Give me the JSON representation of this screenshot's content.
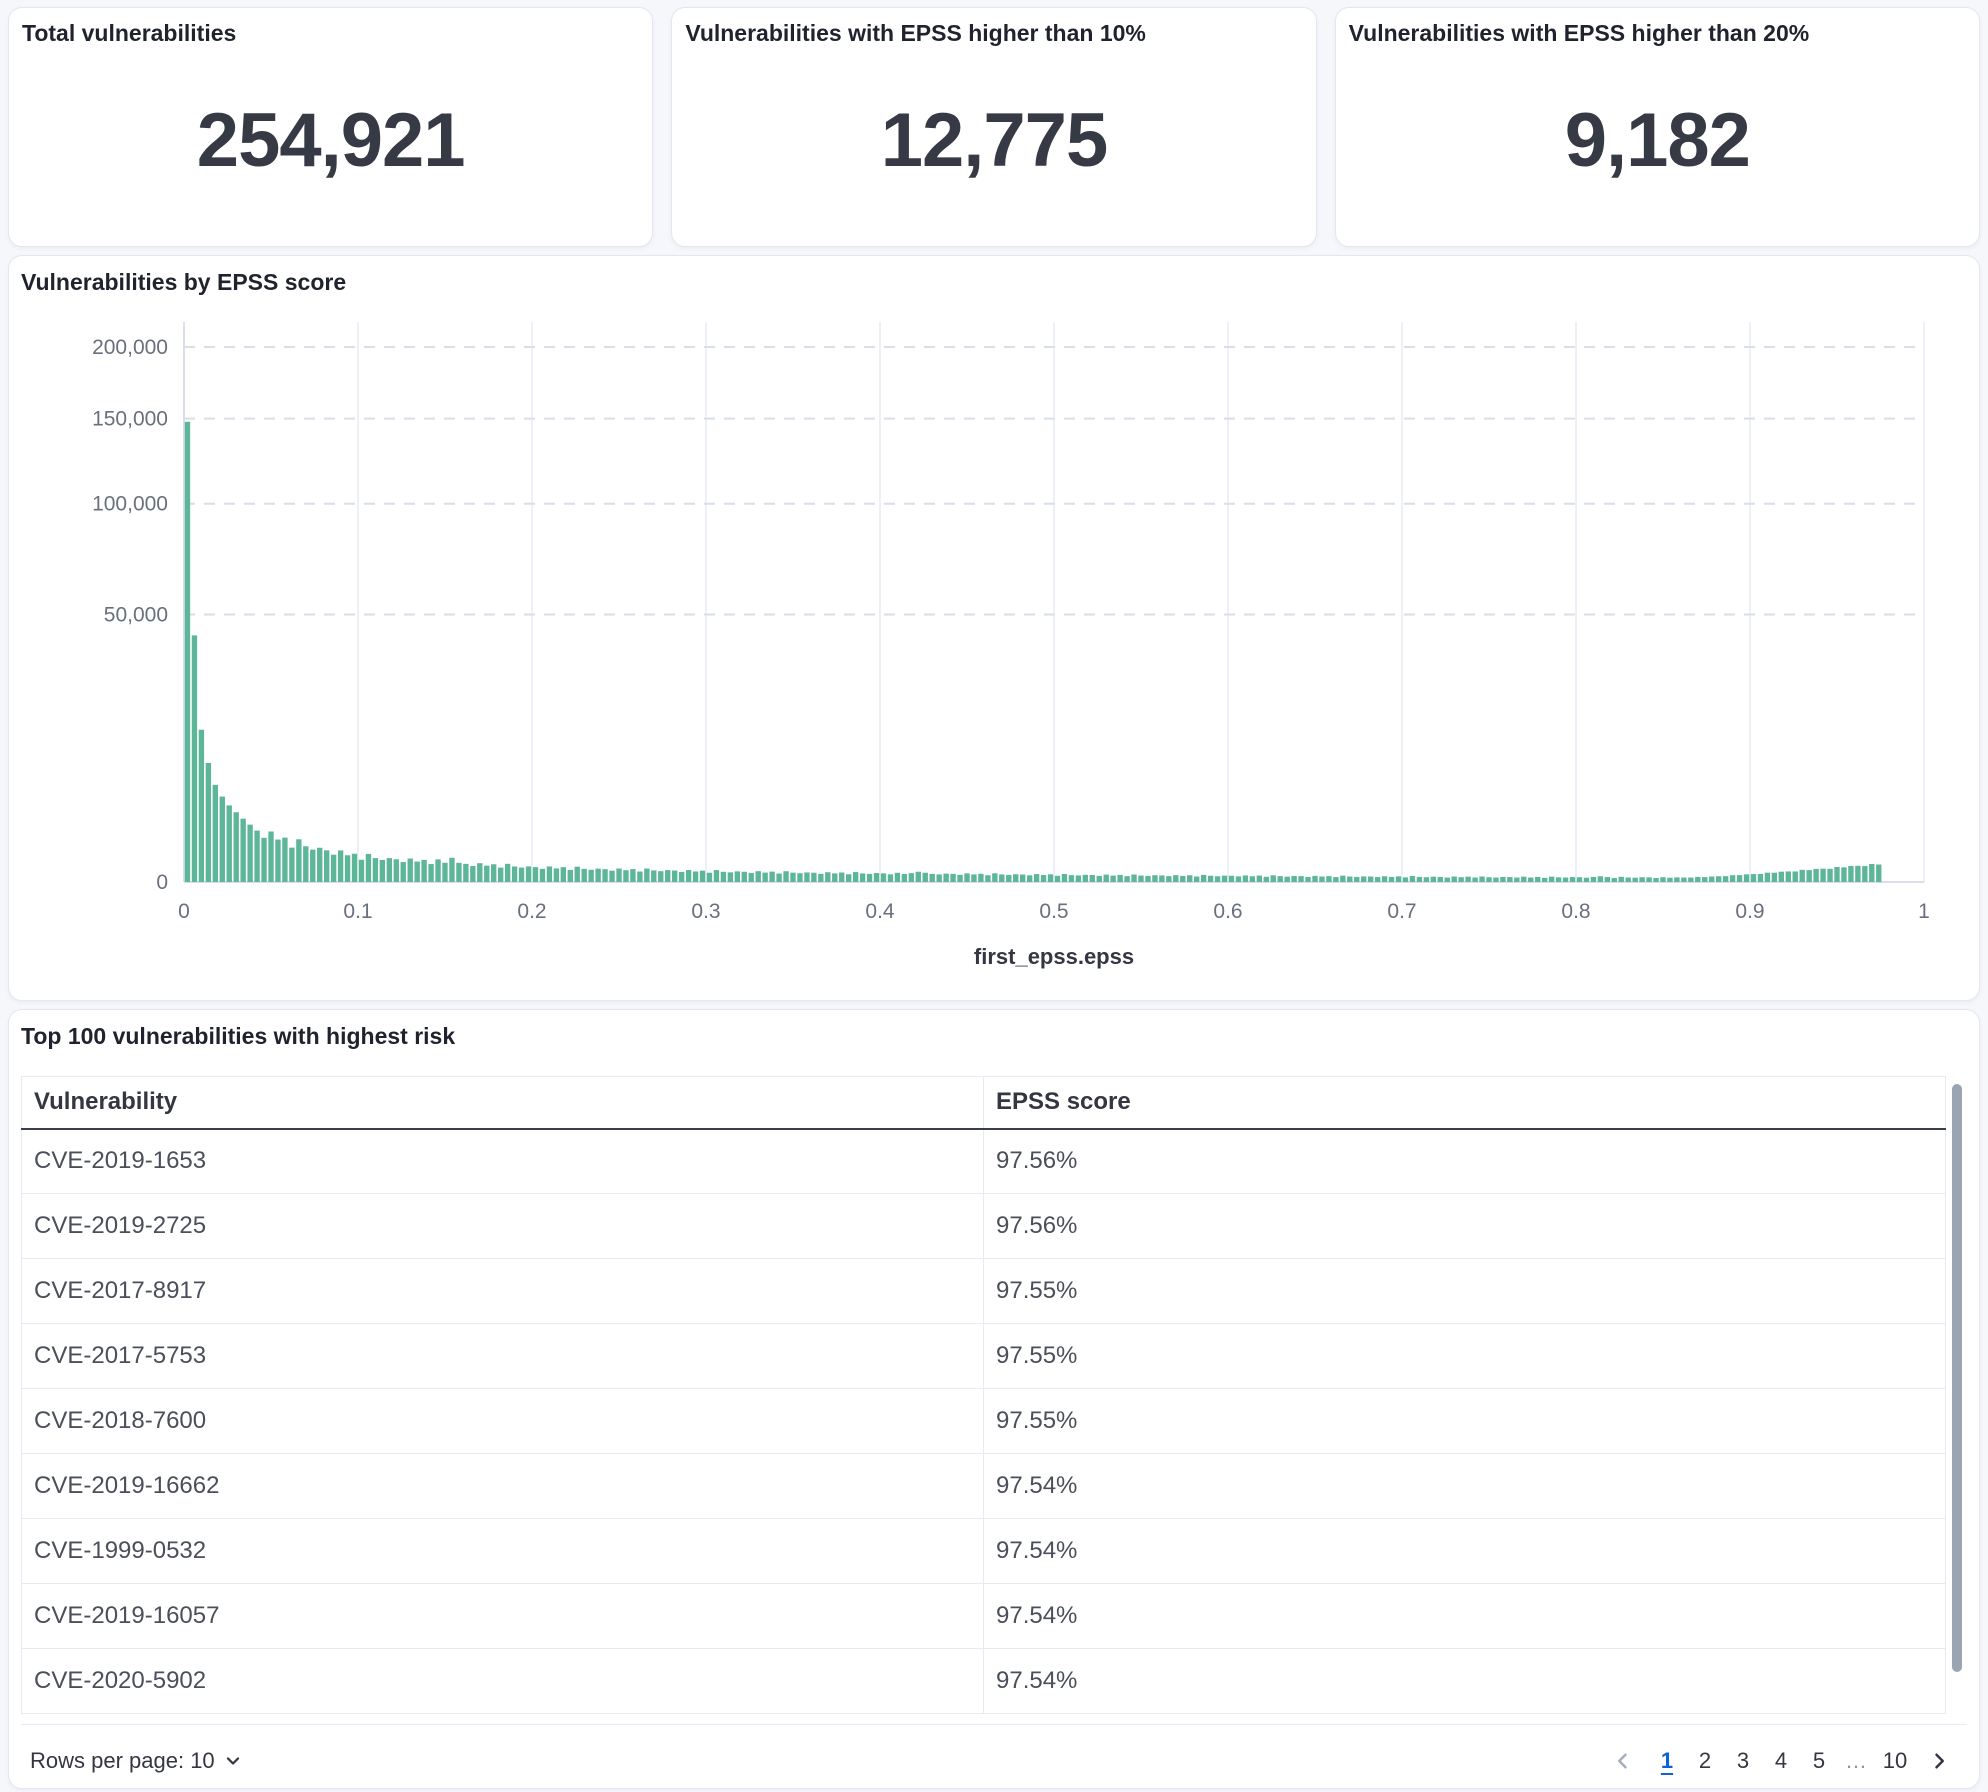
{
  "metrics": [
    {
      "label": "Total vulnerabilities",
      "value": "254,921"
    },
    {
      "label": "Vulnerabilities with EPSS higher than 10%",
      "value": "12,775"
    },
    {
      "label": "Vulnerabilities with EPSS higher than 20%",
      "value": "9,182"
    }
  ],
  "chart": {
    "title": "Vulnerabilities by EPSS score"
  },
  "chart_data": {
    "type": "bar",
    "title": "Vulnerabilities by EPSS score",
    "xlabel": "first_epss.epss",
    "ylabel": "",
    "xlim": [
      0,
      1
    ],
    "ylim": [
      0,
      200000
    ],
    "y_scale": "sqrt",
    "grid": true,
    "bin_width": 0.004,
    "bar_color": "#5eb699",
    "x_ticks": [
      {
        "v": 0,
        "label": "0"
      },
      {
        "v": 0.1,
        "label": "0.1"
      },
      {
        "v": 0.2,
        "label": "0.2"
      },
      {
        "v": 0.3,
        "label": "0.3"
      },
      {
        "v": 0.4,
        "label": "0.4"
      },
      {
        "v": 0.5,
        "label": "0.5"
      },
      {
        "v": 0.6,
        "label": "0.6"
      },
      {
        "v": 0.7,
        "label": "0.7"
      },
      {
        "v": 0.8,
        "label": "0.8"
      },
      {
        "v": 0.9,
        "label": "0.9"
      },
      {
        "v": 1,
        "label": "1"
      }
    ],
    "y_ticks": [
      {
        "v": 0,
        "label": "0"
      },
      {
        "v": 50000,
        "label": "50,000"
      },
      {
        "v": 100000,
        "label": "100,000"
      },
      {
        "v": 150000,
        "label": "150,000"
      },
      {
        "v": 200000,
        "label": "200,000"
      }
    ],
    "bins": [
      148000,
      42500,
      16200,
      9900,
      6600,
      5100,
      4100,
      3400,
      2800,
      2300,
      1850,
      1360,
      1783,
      1260,
      1375,
      825,
      1275,
      893,
      731,
      819,
      700,
      522,
      695,
      500,
      559,
      345,
      550,
      399,
      340,
      399,
      360,
      278,
      386,
      292,
      343,
      225,
      358,
      258,
      410,
      256,
      230,
      178,
      247,
      186,
      220,
      144,
      231,
      168,
      145,
      170,
      155,
      121,
      169,
      129,
      153,
      101,
      164,
      121,
      105,
      125,
      115,
      90,
      127,
      97,
      117,
      77,
      126,
      94,
      82,
      99,
      92,
      71,
      100,
      77,
      90,
      60,
      99,
      73,
      65,
      79,
      73,
      58,
      82,
      62,
      75,
      50,
      81,
      61,
      54,
      64,
      60,
      47,
      67,
      52,
      63,
      42,
      69,
      51,
      46,
      56,
      52,
      41,
      59,
      45,
      55,
      74,
      60,
      46,
      40,
      49,
      46,
      36,
      52,
      40,
      47,
      32,
      53,
      40,
      35,
      42,
      39,
      31,
      44,
      34,
      41,
      27,
      45,
      33,
      30,
      36,
      34,
      26,
      38,
      29,
      35,
      24,
      39,
      29,
      26,
      32,
      30,
      24,
      33,
      26,
      32,
      21,
      35,
      27,
      23,
      28,
      27,
      22,
      30,
      23,
      29,
      19,
      31,
      24,
      20,
      25,
      24,
      18,
      26,
      21,
      24,
      17,
      28,
      21,
      18,
      22,
      21,
      17,
      23,
      18,
      22,
      15,
      25,
      18,
      16,
      20,
      18,
      14,
      21,
      16,
      20,
      14,
      21,
      16,
      14,
      18,
      17,
      14,
      20,
      14,
      18,
      12,
      20,
      15,
      14,
      17,
      16,
      13,
      18,
      23,
      17,
      11,
      19,
      14,
      13,
      16,
      15,
      11,
      16,
      13,
      15,
      14,
      14,
      18,
      17,
      21,
      23,
      24,
      32,
      33,
      41,
      44,
      45,
      61,
      60,
      74,
      78,
      78,
      103,
      99,
      120,
      124,
      122,
      158,
      150,
      179,
      183,
      177,
      227,
      213
    ]
  },
  "table": {
    "title": "Top 100 vulnerabilities with highest risk",
    "columns": [
      "Vulnerability",
      "EPSS score"
    ],
    "rows": [
      {
        "vulnerability": "CVE-2019-1653",
        "epss_score": "97.56%"
      },
      {
        "vulnerability": "CVE-2019-2725",
        "epss_score": "97.56%"
      },
      {
        "vulnerability": "CVE-2017-8917",
        "epss_score": "97.55%"
      },
      {
        "vulnerability": "CVE-2017-5753",
        "epss_score": "97.55%"
      },
      {
        "vulnerability": "CVE-2018-7600",
        "epss_score": "97.55%"
      },
      {
        "vulnerability": "CVE-2019-16662",
        "epss_score": "97.54%"
      },
      {
        "vulnerability": "CVE-1999-0532",
        "epss_score": "97.54%"
      },
      {
        "vulnerability": "CVE-2019-16057",
        "epss_score": "97.54%"
      },
      {
        "vulnerability": "CVE-2020-5902",
        "epss_score": "97.54%"
      }
    ]
  },
  "pagination": {
    "rows_per_page_label": "Rows per page: 10",
    "pages": [
      "1",
      "2",
      "3",
      "4",
      "5",
      "…",
      "10"
    ],
    "active_page": "1"
  },
  "colors": {
    "bar_green": "#5eb699",
    "active_page_blue": "#0c63d8",
    "text_dark": "#343741",
    "text_subdued": "#69707d"
  }
}
